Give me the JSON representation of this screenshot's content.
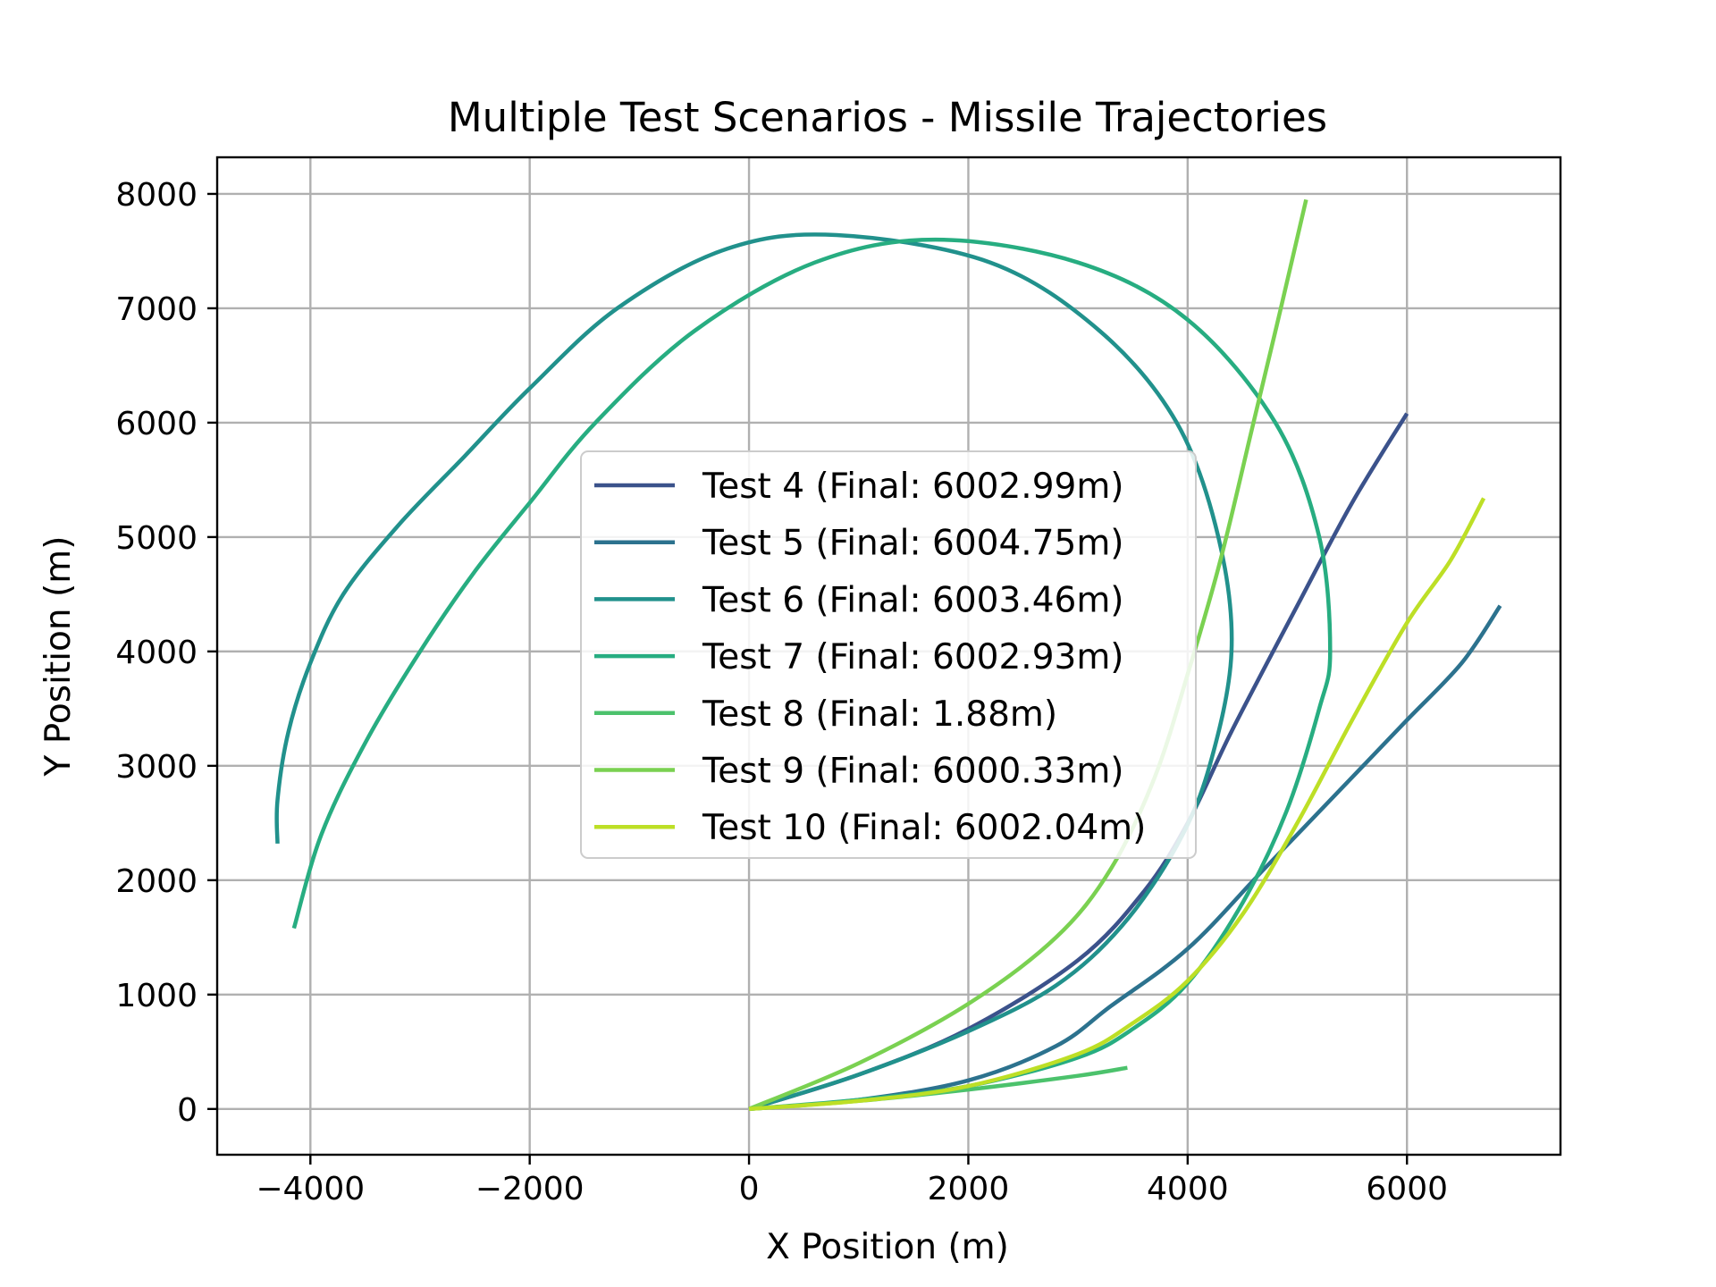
{
  "chart_data": {
    "type": "line",
    "title": "Multiple Test Scenarios - Missile Trajectories",
    "xlabel": "X Position (m)",
    "ylabel": "Y Position (m)",
    "xlim": [
      -4850,
      7400
    ],
    "ylim": [
      -400,
      8320
    ],
    "xticks": [
      -4000,
      -2000,
      0,
      2000,
      4000,
      6000
    ],
    "xtick_labels": [
      "−4000",
      "−2000",
      "0",
      "2000",
      "4000",
      "6000"
    ],
    "yticks": [
      0,
      1000,
      2000,
      3000,
      4000,
      5000,
      6000,
      7000,
      8000
    ],
    "ytick_labels": [
      "0",
      "1000",
      "2000",
      "3000",
      "4000",
      "5000",
      "6000",
      "7000",
      "8000"
    ],
    "grid": true,
    "legend_position": "center",
    "series": [
      {
        "name": "Test 4 (Final: 6002.99m)",
        "color": "#3b528b",
        "points": [
          [
            0,
            0
          ],
          [
            1000,
            300
          ],
          [
            2000,
            700
          ],
          [
            3000,
            1300
          ],
          [
            3600,
            1900
          ],
          [
            4000,
            2500
          ],
          [
            4400,
            3300
          ],
          [
            5000,
            4400
          ],
          [
            5500,
            5300
          ],
          [
            6000,
            6080
          ]
        ]
      },
      {
        "name": "Test 5 (Final: 6004.75m)",
        "color": "#2c728e",
        "points": [
          [
            0,
            0
          ],
          [
            1000,
            80
          ],
          [
            2000,
            250
          ],
          [
            2800,
            550
          ],
          [
            3300,
            900
          ],
          [
            4000,
            1400
          ],
          [
            4700,
            2100
          ],
          [
            5500,
            2900
          ],
          [
            6000,
            3400
          ],
          [
            6500,
            3900
          ],
          [
            6850,
            4400
          ]
        ]
      },
      {
        "name": "Test 6 (Final: 6003.46m)",
        "color": "#21918c",
        "points": [
          [
            0,
            0
          ],
          [
            1000,
            300
          ],
          [
            2000,
            680
          ],
          [
            2800,
            1080
          ],
          [
            3400,
            1600
          ],
          [
            3900,
            2300
          ],
          [
            4200,
            3000
          ],
          [
            4400,
            4000
          ],
          [
            4280,
            5000
          ],
          [
            3900,
            6000
          ],
          [
            3200,
            6800
          ],
          [
            2200,
            7400
          ],
          [
            800,
            7640
          ],
          [
            -200,
            7520
          ],
          [
            -1200,
            7000
          ],
          [
            -2000,
            6300
          ],
          [
            -2600,
            5700
          ],
          [
            -3200,
            5100
          ],
          [
            -3700,
            4500
          ],
          [
            -4000,
            3900
          ],
          [
            -4200,
            3300
          ],
          [
            -4300,
            2700
          ],
          [
            -4300,
            2320
          ]
        ]
      },
      {
        "name": "Test 7 (Final: 6002.93m)",
        "color": "#27ad81",
        "points": [
          [
            0,
            0
          ],
          [
            1000,
            80
          ],
          [
            2000,
            200
          ],
          [
            3000,
            450
          ],
          [
            3500,
            700
          ],
          [
            4000,
            1100
          ],
          [
            4500,
            1800
          ],
          [
            4900,
            2600
          ],
          [
            5200,
            3500
          ],
          [
            5300,
            4000
          ],
          [
            5200,
            5000
          ],
          [
            4800,
            6000
          ],
          [
            4000,
            6900
          ],
          [
            3000,
            7400
          ],
          [
            1700,
            7600
          ],
          [
            600,
            7400
          ],
          [
            -500,
            6800
          ],
          [
            -1400,
            6000
          ],
          [
            -2000,
            5300
          ],
          [
            -2500,
            4700
          ],
          [
            -3000,
            4000
          ],
          [
            -3500,
            3200
          ],
          [
            -3900,
            2400
          ],
          [
            -4150,
            1580
          ]
        ]
      },
      {
        "name": "Test 8 (Final: 1.88m)",
        "color": "#4cc26c",
        "points": [
          [
            0,
            0
          ],
          [
            1000,
            70
          ],
          [
            2000,
            170
          ],
          [
            3000,
            290
          ],
          [
            3450,
            360
          ]
        ]
      },
      {
        "name": "Test 9 (Final: 6000.33m)",
        "color": "#7ad151",
        "points": [
          [
            0,
            0
          ],
          [
            1000,
            400
          ],
          [
            2000,
            920
          ],
          [
            2800,
            1500
          ],
          [
            3300,
            2100
          ],
          [
            3700,
            2900
          ],
          [
            4000,
            3800
          ],
          [
            4300,
            4800
          ],
          [
            4600,
            6000
          ],
          [
            4850,
            7000
          ],
          [
            5080,
            7950
          ]
        ]
      },
      {
        "name": "Test 10 (Final: 6002.04m)",
        "color": "#bddf26",
        "points": [
          [
            0,
            0
          ],
          [
            1000,
            70
          ],
          [
            2000,
            200
          ],
          [
            3000,
            480
          ],
          [
            3500,
            750
          ],
          [
            4000,
            1120
          ],
          [
            4500,
            1700
          ],
          [
            5000,
            2500
          ],
          [
            5500,
            3400
          ],
          [
            6000,
            4250
          ],
          [
            6400,
            4800
          ],
          [
            6700,
            5340
          ]
        ]
      }
    ]
  }
}
